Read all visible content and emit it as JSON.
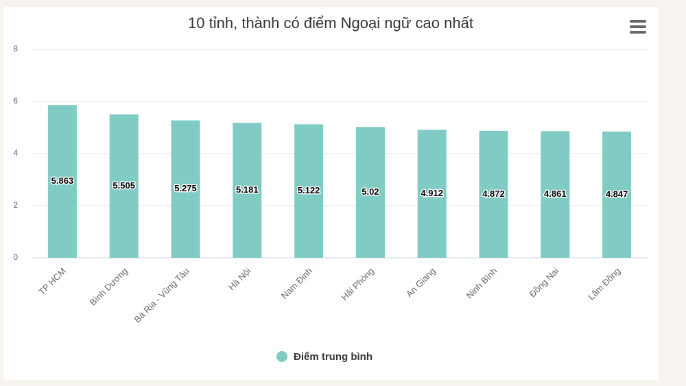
{
  "chart_data": {
    "type": "bar",
    "title": "10 tỉnh, thành có điểm Ngoại ngữ cao nhất",
    "categories": [
      "TP HCM",
      "Bình Dương",
      "Bà Rịa - Vũng Tàu",
      "Hà Nội",
      "Nam Định",
      "Hải Phòng",
      "An Giang",
      "Ninh Bình",
      "Đồng Nai",
      "Lâm Đồng"
    ],
    "series": [
      {
        "name": "Điểm trung bình",
        "color": "#80cbc4",
        "values": [
          5.863,
          5.505,
          5.275,
          5.181,
          5.122,
          5.02,
          4.912,
          4.872,
          4.861,
          4.847
        ]
      }
    ],
    "ylim": [
      0,
      8
    ],
    "yticks": [
      0,
      2,
      4,
      6,
      8
    ],
    "grid": true,
    "legend": "bottom"
  }
}
